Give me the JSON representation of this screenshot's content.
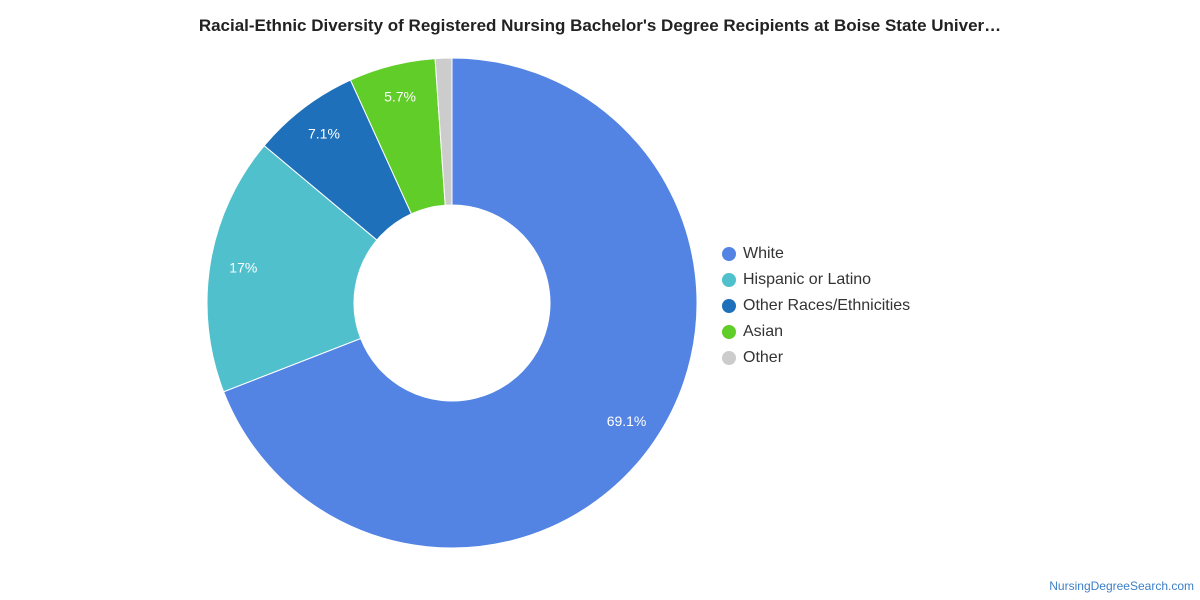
{
  "chart_data": {
    "type": "pie",
    "donut": true,
    "title": "Racial-Ethnic Diversity of Registered Nursing Bachelor's Degree Recipients at Boise State Univer…",
    "categories": [
      "White",
      "Hispanic or Latino",
      "Other Races/Ethnicities",
      "Asian",
      "Other"
    ],
    "values": [
      69.1,
      17,
      7.1,
      5.7,
      1.1
    ],
    "data_labels": [
      "69.1%",
      "17%",
      "7.1%",
      "5.7%",
      ""
    ],
    "colors": [
      "#5384e3",
      "#50c0cd",
      "#1f70ba",
      "#61cd28",
      "#cccccc"
    ],
    "legend_position": "right"
  },
  "source": "NursingDegreeSearch.com"
}
